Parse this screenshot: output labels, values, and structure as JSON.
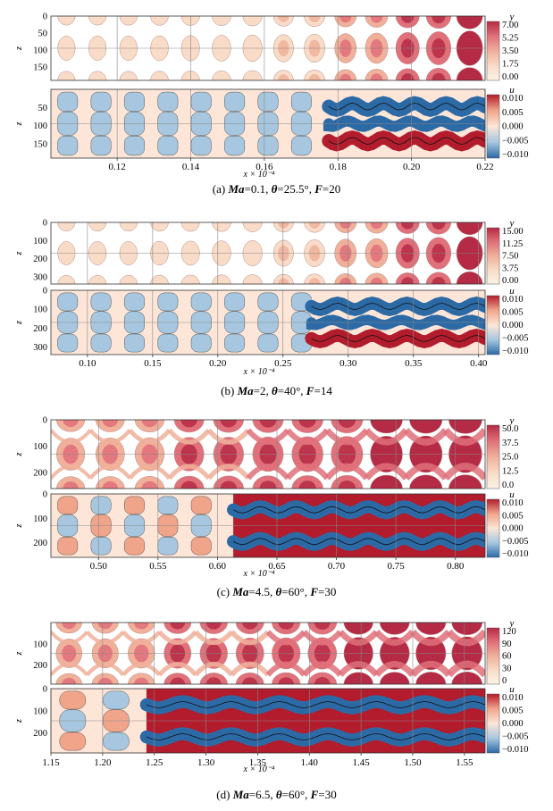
{
  "figure": {
    "panels": [
      {
        "id": "a",
        "caption": {
          "label": "(a)",
          "param1_name": "Ma",
          "param1_value": "0.1",
          "param2_name": "θ",
          "param2_value": "25.5°",
          "param3_name": "F",
          "param3_value": "20"
        },
        "xlabel": "x × 10⁻⁴",
        "zlabel": "z",
        "upper": {
          "colorbar_title": "y",
          "colorbar_ticks": [
            "7.00",
            "5.25",
            "3.50",
            "1.75",
            "0.00"
          ],
          "z_ticks": [
            "0",
            "50",
            "100",
            "150"
          ]
        },
        "lower": {
          "colorbar_title": "u",
          "colorbar_ticks": [
            "0.010",
            "0.005",
            "0.000",
            "−0.005",
            "−0.010"
          ],
          "z_ticks": [
            "50",
            "100",
            "150"
          ]
        },
        "x_ticks": [
          "0.12",
          "0.14",
          "0.16",
          "0.18",
          "0.20",
          "0.22"
        ]
      },
      {
        "id": "b",
        "caption": {
          "label": "(b)",
          "param1_name": "Ma",
          "param1_value": "2",
          "param2_name": "θ",
          "param2_value": "40°",
          "param3_name": "F",
          "param3_value": "14"
        },
        "xlabel": "x × 10⁻⁴",
        "zlabel": "z",
        "upper": {
          "colorbar_title": "y",
          "colorbar_ticks": [
            "15.00",
            "11.25",
            "7.50",
            "3.75",
            "0.00"
          ],
          "z_ticks": [
            "0",
            "100",
            "200",
            "300"
          ]
        },
        "lower": {
          "colorbar_title": "u",
          "colorbar_ticks": [
            "0.010",
            "0.005",
            "0.000",
            "−0.005",
            "−0.010"
          ],
          "z_ticks": [
            "0",
            "100",
            "200",
            "300"
          ]
        },
        "x_ticks": [
          "0.10",
          "0.15",
          "0.20",
          "0.25",
          "0.30",
          "0.35",
          "0.40"
        ]
      },
      {
        "id": "c",
        "caption": {
          "label": "(c)",
          "param1_name": "Ma",
          "param1_value": "4.5",
          "param2_name": "θ",
          "param2_value": "60°",
          "param3_name": "F",
          "param3_value": "30"
        },
        "xlabel": "x × 10⁻⁴",
        "zlabel": "z",
        "upper": {
          "colorbar_title": "y",
          "colorbar_ticks": [
            "50.0",
            "37.5",
            "25.0",
            "12.5",
            "0.0"
          ],
          "z_ticks": [
            "0",
            "100",
            "200"
          ]
        },
        "lower": {
          "colorbar_title": "u",
          "colorbar_ticks": [
            "0.010",
            "0.005",
            "0.000",
            "−0.005",
            "−0.010"
          ],
          "z_ticks": [
            "0",
            "100",
            "200"
          ]
        },
        "x_ticks": [
          "0.50",
          "0.55",
          "0.60",
          "0.65",
          "0.70",
          "0.75",
          "0.80"
        ]
      },
      {
        "id": "d",
        "caption": {
          "label": "(d)",
          "param1_name": "Ma",
          "param1_value": "6.5",
          "param2_name": "θ",
          "param2_value": "60°",
          "param3_name": "F",
          "param3_value": "30"
        },
        "xlabel": "x × 10⁻⁴",
        "zlabel": "z",
        "upper": {
          "colorbar_title": "y",
          "colorbar_ticks": [
            "120",
            "90",
            "60",
            "30",
            "0"
          ],
          "z_ticks": [
            "100",
            "200"
          ]
        },
        "lower": {
          "colorbar_title": "u",
          "colorbar_ticks": [
            "0.010",
            "0.005",
            "0.000",
            "−0.005",
            "−0.010"
          ],
          "z_ticks": [
            "0",
            "100",
            "200"
          ]
        },
        "x_ticks": [
          "1.15",
          "1.20",
          "1.25",
          "1.30",
          "1.35",
          "1.40",
          "1.45",
          "1.50",
          "1.55"
        ]
      }
    ],
    "colors": {
      "y_scale": [
        "#fbf3e6",
        "#f8dcc8",
        "#f0b09a",
        "#e0707a",
        "#b52a44"
      ],
      "u_scale": [
        "#2c6aa6",
        "#a6c7df",
        "#fde6d8",
        "#f0a58a",
        "#b21c2c"
      ],
      "grid": "#888888"
    }
  },
  "chart_data": [
    {
      "type": "heatmap",
      "panel": "(a) upper",
      "variable": "y",
      "xlabel": "x × 10⁻⁴",
      "ylabel": "z",
      "xlim": [
        0.102,
        0.22
      ],
      "zlim": [
        0,
        190
      ],
      "colorbar_range": [
        0.0,
        7.0
      ],
      "colorbar_ticks": [
        7.0,
        5.25,
        3.5,
        1.75,
        0.0
      ],
      "z_ticks": [
        0,
        50,
        100,
        150
      ],
      "x_ticks": [
        0.12,
        0.14,
        0.16,
        0.18,
        0.2,
        0.22
      ]
    },
    {
      "type": "heatmap",
      "panel": "(a) lower",
      "variable": "u",
      "xlabel": "x × 10⁻⁴",
      "ylabel": "z",
      "xlim": [
        0.102,
        0.22
      ],
      "zlim": [
        0,
        190
      ],
      "colorbar_range": [
        -0.01,
        0.01
      ],
      "colorbar_ticks": [
        0.01,
        0.005,
        0.0,
        -0.005,
        -0.01
      ],
      "z_ticks": [
        50,
        100,
        150
      ],
      "x_ticks": [
        0.12,
        0.14,
        0.16,
        0.18,
        0.2,
        0.22
      ]
    },
    {
      "type": "heatmap",
      "panel": "(b) upper",
      "variable": "y",
      "xlabel": "x × 10⁻⁴",
      "ylabel": "z",
      "xlim": [
        0.072,
        0.405
      ],
      "zlim": [
        0,
        340
      ],
      "colorbar_range": [
        0.0,
        15.0
      ],
      "colorbar_ticks": [
        15.0,
        11.25,
        7.5,
        3.75,
        0.0
      ],
      "z_ticks": [
        0,
        100,
        200,
        300
      ],
      "x_ticks": [
        0.1,
        0.15,
        0.2,
        0.25,
        0.3,
        0.35,
        0.4
      ]
    },
    {
      "type": "heatmap",
      "panel": "(b) lower",
      "variable": "u",
      "xlabel": "x × 10⁻⁴",
      "ylabel": "z",
      "xlim": [
        0.072,
        0.405
      ],
      "zlim": [
        0,
        340
      ],
      "colorbar_range": [
        -0.01,
        0.01
      ],
      "colorbar_ticks": [
        0.01,
        0.005,
        0.0,
        -0.005,
        -0.01
      ],
      "z_ticks": [
        0,
        100,
        200,
        300
      ],
      "x_ticks": [
        0.1,
        0.15,
        0.2,
        0.25,
        0.3,
        0.35,
        0.4
      ]
    },
    {
      "type": "heatmap",
      "panel": "(c) upper",
      "variable": "y",
      "xlabel": "x × 10⁻⁴",
      "ylabel": "z",
      "xlim": [
        0.46,
        0.825
      ],
      "zlim": [
        0,
        260
      ],
      "colorbar_range": [
        0.0,
        50.0
      ],
      "colorbar_ticks": [
        50.0,
        37.5,
        25.0,
        12.5,
        0.0
      ],
      "z_ticks": [
        0,
        100,
        200
      ],
      "x_ticks": [
        0.5,
        0.55,
        0.6,
        0.65,
        0.7,
        0.75,
        0.8
      ]
    },
    {
      "type": "heatmap",
      "panel": "(c) lower",
      "variable": "u",
      "xlabel": "x × 10⁻⁴",
      "ylabel": "z",
      "xlim": [
        0.46,
        0.825
      ],
      "zlim": [
        0,
        260
      ],
      "colorbar_range": [
        -0.01,
        0.01
      ],
      "colorbar_ticks": [
        0.01,
        0.005,
        0.0,
        -0.005,
        -0.01
      ],
      "z_ticks": [
        0,
        100,
        200
      ],
      "x_ticks": [
        0.5,
        0.55,
        0.6,
        0.65,
        0.7,
        0.75,
        0.8
      ]
    },
    {
      "type": "heatmap",
      "panel": "(d) upper",
      "variable": "y",
      "xlabel": "x × 10⁻⁴",
      "ylabel": "z",
      "xlim": [
        1.15,
        1.57
      ],
      "zlim": [
        0,
        290
      ],
      "colorbar_range": [
        0,
        120
      ],
      "colorbar_ticks": [
        120,
        90,
        60,
        30,
        0
      ],
      "z_ticks": [
        100,
        200
      ],
      "x_ticks": [
        1.15,
        1.2,
        1.25,
        1.3,
        1.35,
        1.4,
        1.45,
        1.5,
        1.55
      ]
    },
    {
      "type": "heatmap",
      "panel": "(d) lower",
      "variable": "u",
      "xlabel": "x × 10⁻⁴",
      "ylabel": "z",
      "xlim": [
        1.15,
        1.57
      ],
      "zlim": [
        0,
        290
      ],
      "colorbar_range": [
        -0.01,
        0.01
      ],
      "colorbar_ticks": [
        0.01,
        0.005,
        0.0,
        -0.005,
        -0.01
      ],
      "z_ticks": [
        0,
        100,
        200
      ],
      "x_ticks": [
        1.15,
        1.2,
        1.25,
        1.3,
        1.35,
        1.4,
        1.45,
        1.5,
        1.55
      ]
    }
  ]
}
